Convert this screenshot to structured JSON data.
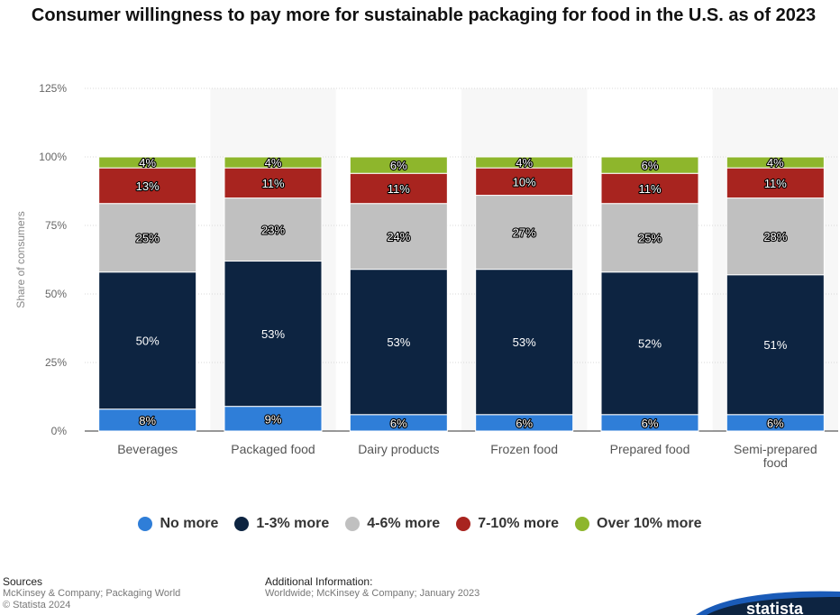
{
  "title": "Consumer willingness to pay more for sustainable packaging for food in the U.S. as of 2023",
  "chart_data": {
    "type": "bar",
    "stacked": true,
    "categories": [
      "Beverages",
      "Packaged food",
      "Dairy products",
      "Frozen food",
      "Prepared food",
      "Semi-prepared food"
    ],
    "series": [
      {
        "name": "No more",
        "color": "#2f7ed8",
        "values": [
          8,
          9,
          6,
          6,
          6,
          6
        ]
      },
      {
        "name": "1-3% more",
        "color": "#0d2441",
        "values": [
          50,
          53,
          53,
          53,
          52,
          51
        ]
      },
      {
        "name": "4-6% more",
        "color": "#c0c0c0",
        "values": [
          25,
          23,
          24,
          27,
          25,
          28
        ]
      },
      {
        "name": "7-10% more",
        "color": "#a8241f",
        "values": [
          13,
          11,
          11,
          10,
          11,
          11
        ]
      },
      {
        "name": "Over 10% more",
        "color": "#8eb62c",
        "values": [
          4,
          4,
          6,
          4,
          6,
          4
        ]
      }
    ],
    "ylabel": "Share of consumers",
    "ylim": [
      0,
      125
    ],
    "yticks": [
      "0%",
      "25%",
      "50%",
      "75%",
      "100%",
      "125%"
    ],
    "grid": true,
    "legend": "bottom"
  },
  "sources": {
    "heading": "Sources",
    "lines": [
      "McKinsey & Company; Packaging World",
      "© Statista 2024"
    ]
  },
  "additional": {
    "heading": "Additional Information:",
    "text": "Worldwide; McKinsey & Company; January 2023"
  },
  "logo_text": "statista"
}
